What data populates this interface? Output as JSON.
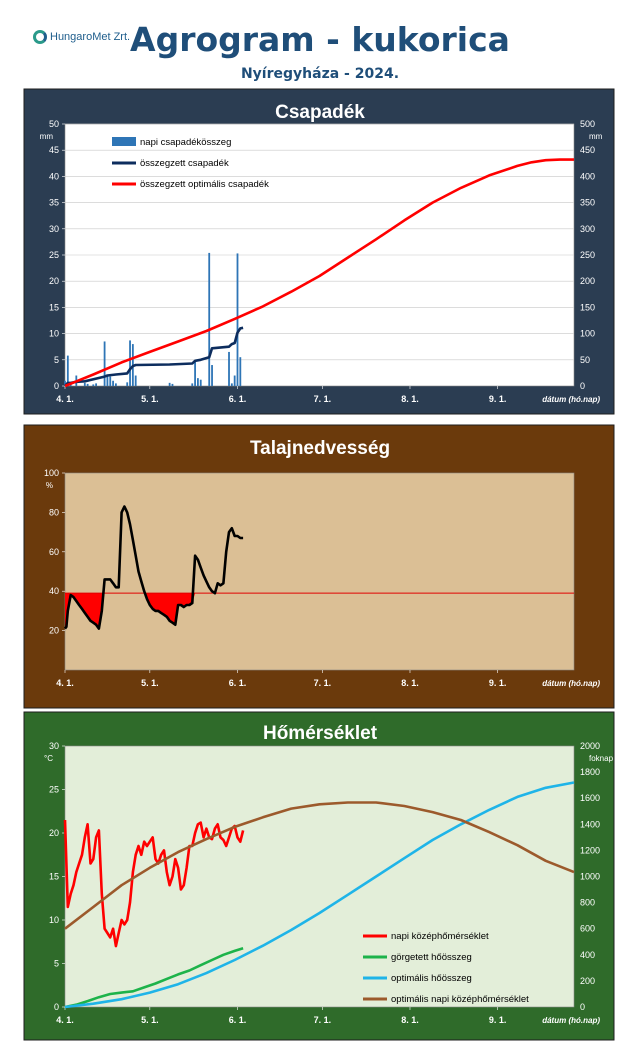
{
  "header": {
    "logo_text": "HungaroMet Zrt.",
    "title": "Agrogram - kukorica",
    "subtitle": "Nyíregyháza  - 2024."
  },
  "colors": {
    "rain_bar": "#2e75b6",
    "rain_cum": "#0d2d5e",
    "opt_rain": "#ff0000",
    "temp_daily": "#ff0000",
    "gdd": "#1db34a",
    "opt_gdd": "#1fb4e8",
    "opt_temp": "#9c5a2c"
  },
  "chart_data": [
    {
      "type": "bar+line",
      "title": "Csapadék",
      "ylabel": "mm",
      "ylabel_right": "mm",
      "xlabel": "dátum (hó.nap)",
      "ylim": [
        0,
        50
      ],
      "yticks": [
        0,
        5,
        10,
        15,
        20,
        25,
        30,
        35,
        40,
        45,
        50
      ],
      "ylim_right": [
        0,
        500
      ],
      "yticks_right": [
        0,
        50,
        100,
        150,
        200,
        250,
        300,
        350,
        400,
        450,
        500
      ],
      "xlim": [
        0,
        180
      ],
      "xticks": [
        {
          "day": 0,
          "label": "4. 1."
        },
        {
          "day": 30,
          "label": "5. 1."
        },
        {
          "day": 61,
          "label": "6. 1."
        },
        {
          "day": 91,
          "label": "7. 1."
        },
        {
          "day": 122,
          "label": "8. 1."
        },
        {
          "day": 153,
          "label": "9. 1."
        }
      ],
      "grid": true,
      "legend_position": "top-left",
      "series": [
        {
          "name": "napi csapadékösszeg",
          "axis": "left",
          "kind": "bar",
          "color": "#2e75b6",
          "x": [
            0,
            1,
            2,
            4,
            7,
            8,
            10,
            11,
            14,
            15,
            16,
            17,
            18,
            22,
            23,
            24,
            25,
            37,
            38,
            45,
            46,
            47,
            48,
            51,
            52,
            58,
            59,
            60,
            61,
            62
          ],
          "y": [
            1.0,
            5.8,
            0.5,
            2.0,
            0.6,
            0.4,
            0.3,
            0.5,
            8.5,
            2.0,
            1.8,
            1.0,
            0.5,
            0.7,
            8.7,
            8.0,
            2.0,
            0.6,
            0.4,
            0.5,
            4.8,
            1.5,
            1.2,
            25.4,
            4.0,
            6.5,
            0.5,
            2.0,
            25.3,
            5.5
          ]
        },
        {
          "name": "összegzett csapadék",
          "axis": "right",
          "kind": "line",
          "color": "#0d2d5e",
          "x": [
            0,
            1,
            2,
            4,
            7,
            14,
            15,
            18,
            22,
            23,
            24,
            25,
            37,
            45,
            46,
            48,
            51,
            52,
            58,
            59,
            60,
            61,
            62,
            63
          ],
          "y": [
            0,
            6,
            6,
            8,
            9,
            18,
            20,
            22,
            24,
            32,
            38,
            40,
            41,
            43,
            48,
            50,
            55,
            72,
            75,
            80,
            82,
            102,
            110,
            111
          ]
        },
        {
          "name": "összegzett optimális csapadék",
          "axis": "right",
          "kind": "line",
          "color": "#ff0000",
          "x": [
            0,
            10,
            20,
            30,
            40,
            50,
            60,
            70,
            80,
            90,
            100,
            110,
            120,
            130,
            140,
            150,
            160,
            165,
            170,
            175,
            180
          ],
          "y": [
            0,
            22,
            45,
            65,
            85,
            105,
            128,
            152,
            180,
            210,
            245,
            280,
            316,
            350,
            378,
            402,
            420,
            427,
            431,
            432,
            432
          ]
        }
      ]
    },
    {
      "type": "line",
      "title": "Talajnedvesség",
      "ylabel": "%",
      "xlabel": "dátum (hó.nap)",
      "ylim": [
        0,
        100
      ],
      "yticks": [
        20,
        40,
        60,
        80,
        100
      ],
      "xlim": [
        0,
        180
      ],
      "xticks": [
        {
          "day": 0,
          "label": "4. 1."
        },
        {
          "day": 30,
          "label": "5. 1."
        },
        {
          "day": 61,
          "label": "6. 1."
        },
        {
          "day": 91,
          "label": "7. 1."
        },
        {
          "day": 122,
          "label": "8. 1."
        },
        {
          "day": 153,
          "label": "9. 1."
        }
      ],
      "grid": false,
      "threshold": 39,
      "series": [
        {
          "name": "",
          "color": "#000000",
          "x": [
            0,
            0.5,
            1,
            2,
            3,
            4,
            5,
            6,
            7,
            8,
            9,
            10,
            11,
            12,
            13,
            14,
            15,
            16,
            17,
            18,
            19,
            20,
            21,
            22,
            23,
            24,
            25,
            26,
            27,
            28,
            29,
            30,
            31,
            32,
            33,
            34,
            35,
            36,
            37,
            38,
            39,
            40,
            41,
            42,
            43,
            44,
            45,
            46,
            47,
            48,
            49,
            50,
            51,
            52,
            53,
            54,
            55,
            56,
            57,
            58,
            59,
            60,
            61,
            62,
            63
          ],
          "y": [
            21,
            22,
            30,
            38,
            37,
            35,
            33,
            31,
            29,
            27,
            25,
            24,
            23,
            21,
            30,
            46,
            46,
            46,
            44,
            42,
            42,
            80,
            83,
            80,
            74,
            66,
            58,
            50,
            45,
            40,
            36,
            33,
            31,
            30,
            30,
            29,
            28,
            27,
            25,
            24,
            23,
            33,
            33,
            32,
            33,
            33,
            34,
            58,
            56,
            52,
            48,
            45,
            42,
            40,
            39,
            44,
            43,
            44,
            60,
            70,
            72,
            68,
            68,
            67,
            67
          ]
        }
      ]
    },
    {
      "type": "line",
      "title": "Hőmérséklet",
      "ylabel": "°C",
      "ylabel_right": "foknap",
      "xlabel": "dátum (hó.nap)",
      "ylim": [
        0,
        30
      ],
      "yticks": [
        0,
        5,
        10,
        15,
        20,
        25,
        30
      ],
      "ylim_right": [
        0,
        2000
      ],
      "yticks_right": [
        0,
        200,
        400,
        600,
        800,
        1000,
        1200,
        1400,
        1600,
        1800,
        2000
      ],
      "xlim": [
        0,
        180
      ],
      "xticks": [
        {
          "day": 0,
          "label": "4. 1."
        },
        {
          "day": 30,
          "label": "5. 1."
        },
        {
          "day": 61,
          "label": "6. 1."
        },
        {
          "day": 91,
          "label": "7. 1."
        },
        {
          "day": 122,
          "label": "8. 1."
        },
        {
          "day": 153,
          "label": "9. 1."
        }
      ],
      "grid": false,
      "legend_position": "bottom-right",
      "series": [
        {
          "name": "napi középhőmérséklet",
          "axis": "left",
          "color": "#ff0000",
          "x": [
            0,
            1,
            2,
            3,
            4,
            5,
            6,
            7,
            8,
            9,
            10,
            11,
            12,
            13,
            14,
            15,
            16,
            17,
            18,
            19,
            20,
            21,
            22,
            23,
            24,
            25,
            26,
            27,
            28,
            29,
            30,
            31,
            32,
            33,
            34,
            35,
            36,
            37,
            38,
            39,
            40,
            41,
            42,
            43,
            44,
            45,
            46,
            47,
            48,
            49,
            50,
            51,
            52,
            53,
            54,
            55,
            56,
            57,
            58,
            59,
            60,
            61,
            62,
            63
          ],
          "y": [
            21.5,
            11.5,
            13,
            14,
            15.5,
            16.5,
            17.5,
            19.5,
            21,
            16.5,
            17,
            19.5,
            20.3,
            13,
            9,
            8.5,
            8,
            9,
            7,
            8.5,
            10,
            9.5,
            10,
            12,
            15.5,
            17.5,
            18.5,
            17.5,
            19,
            18.5,
            19,
            19.5,
            17,
            16.5,
            17.5,
            18,
            15.5,
            14,
            15,
            17,
            16,
            13.5,
            14,
            16,
            18.5,
            18.5,
            20,
            21,
            21.2,
            19.5,
            20.5,
            19.5,
            19.3,
            20.5,
            21,
            19.5,
            19.2,
            18.5,
            19.5,
            20.5,
            20.8,
            19.5,
            19,
            20.3
          ]
        },
        {
          "name": "görgetett hőösszeg",
          "axis": "right",
          "color": "#1db34a",
          "x": [
            0,
            4,
            8,
            12,
            16,
            20,
            24,
            28,
            32,
            36,
            40,
            44,
            48,
            52,
            56,
            60,
            63
          ],
          "y": [
            0,
            18,
            45,
            75,
            100,
            110,
            120,
            150,
            180,
            215,
            250,
            280,
            320,
            360,
            400,
            430,
            450
          ]
        },
        {
          "name": "optimális hőösszeg",
          "axis": "right",
          "color": "#1fb4e8",
          "x": [
            0,
            10,
            20,
            30,
            40,
            50,
            60,
            70,
            80,
            90,
            100,
            110,
            120,
            130,
            140,
            150,
            160,
            170,
            180
          ],
          "y": [
            0,
            25,
            60,
            110,
            175,
            260,
            360,
            470,
            590,
            720,
            860,
            1000,
            1140,
            1280,
            1400,
            1510,
            1610,
            1680,
            1720
          ]
        },
        {
          "name": "optimális napi középhőmérséklet",
          "axis": "left",
          "color": "#9c5a2c",
          "x": [
            0,
            10,
            20,
            30,
            40,
            50,
            60,
            70,
            80,
            90,
            100,
            110,
            120,
            130,
            140,
            150,
            160,
            170,
            180
          ],
          "y": [
            9,
            11.5,
            14,
            16,
            17.8,
            19.3,
            20.7,
            21.8,
            22.8,
            23.3,
            23.5,
            23.5,
            23.1,
            22.4,
            21.5,
            20.1,
            18.6,
            16.8,
            15.5
          ]
        }
      ]
    }
  ]
}
